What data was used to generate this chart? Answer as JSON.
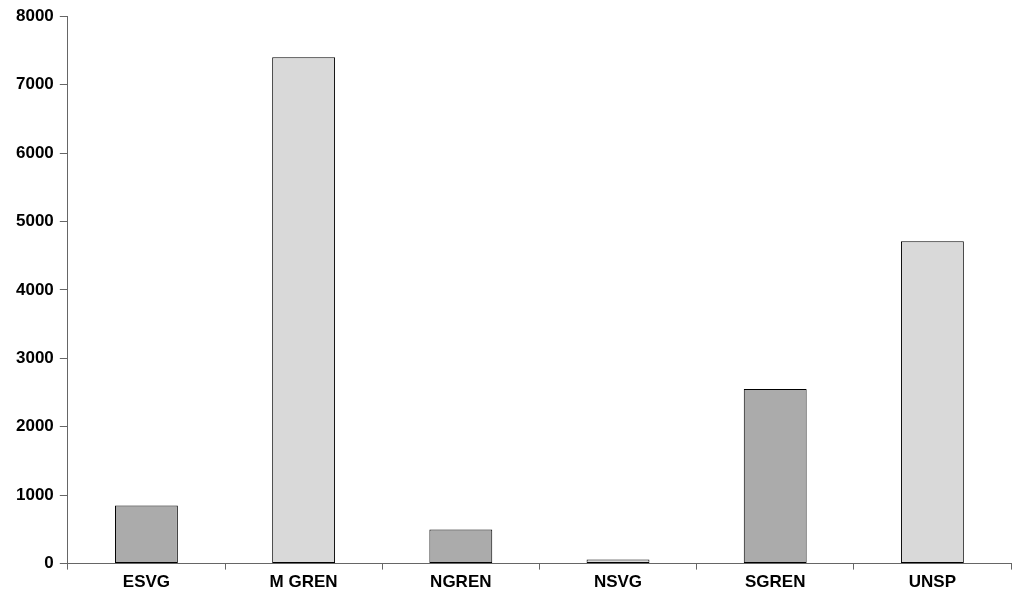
{
  "chart_data": {
    "type": "bar",
    "categories": [
      "ESVG",
      "M GREN",
      "NGREN",
      "NSVG",
      "SGREN",
      "UNSP"
    ],
    "values": [
      850,
      7400,
      500,
      60,
      2550,
      4710
    ],
    "colors": [
      "#ababab",
      "#d9d9d9",
      "#ababab",
      "#d9d9d9",
      "#ababab",
      "#d9d9d9"
    ],
    "ylim": [
      0,
      8000
    ],
    "yticks": [
      0,
      1000,
      2000,
      3000,
      4000,
      5000,
      6000,
      7000,
      8000
    ],
    "grid": false,
    "legend": false
  }
}
